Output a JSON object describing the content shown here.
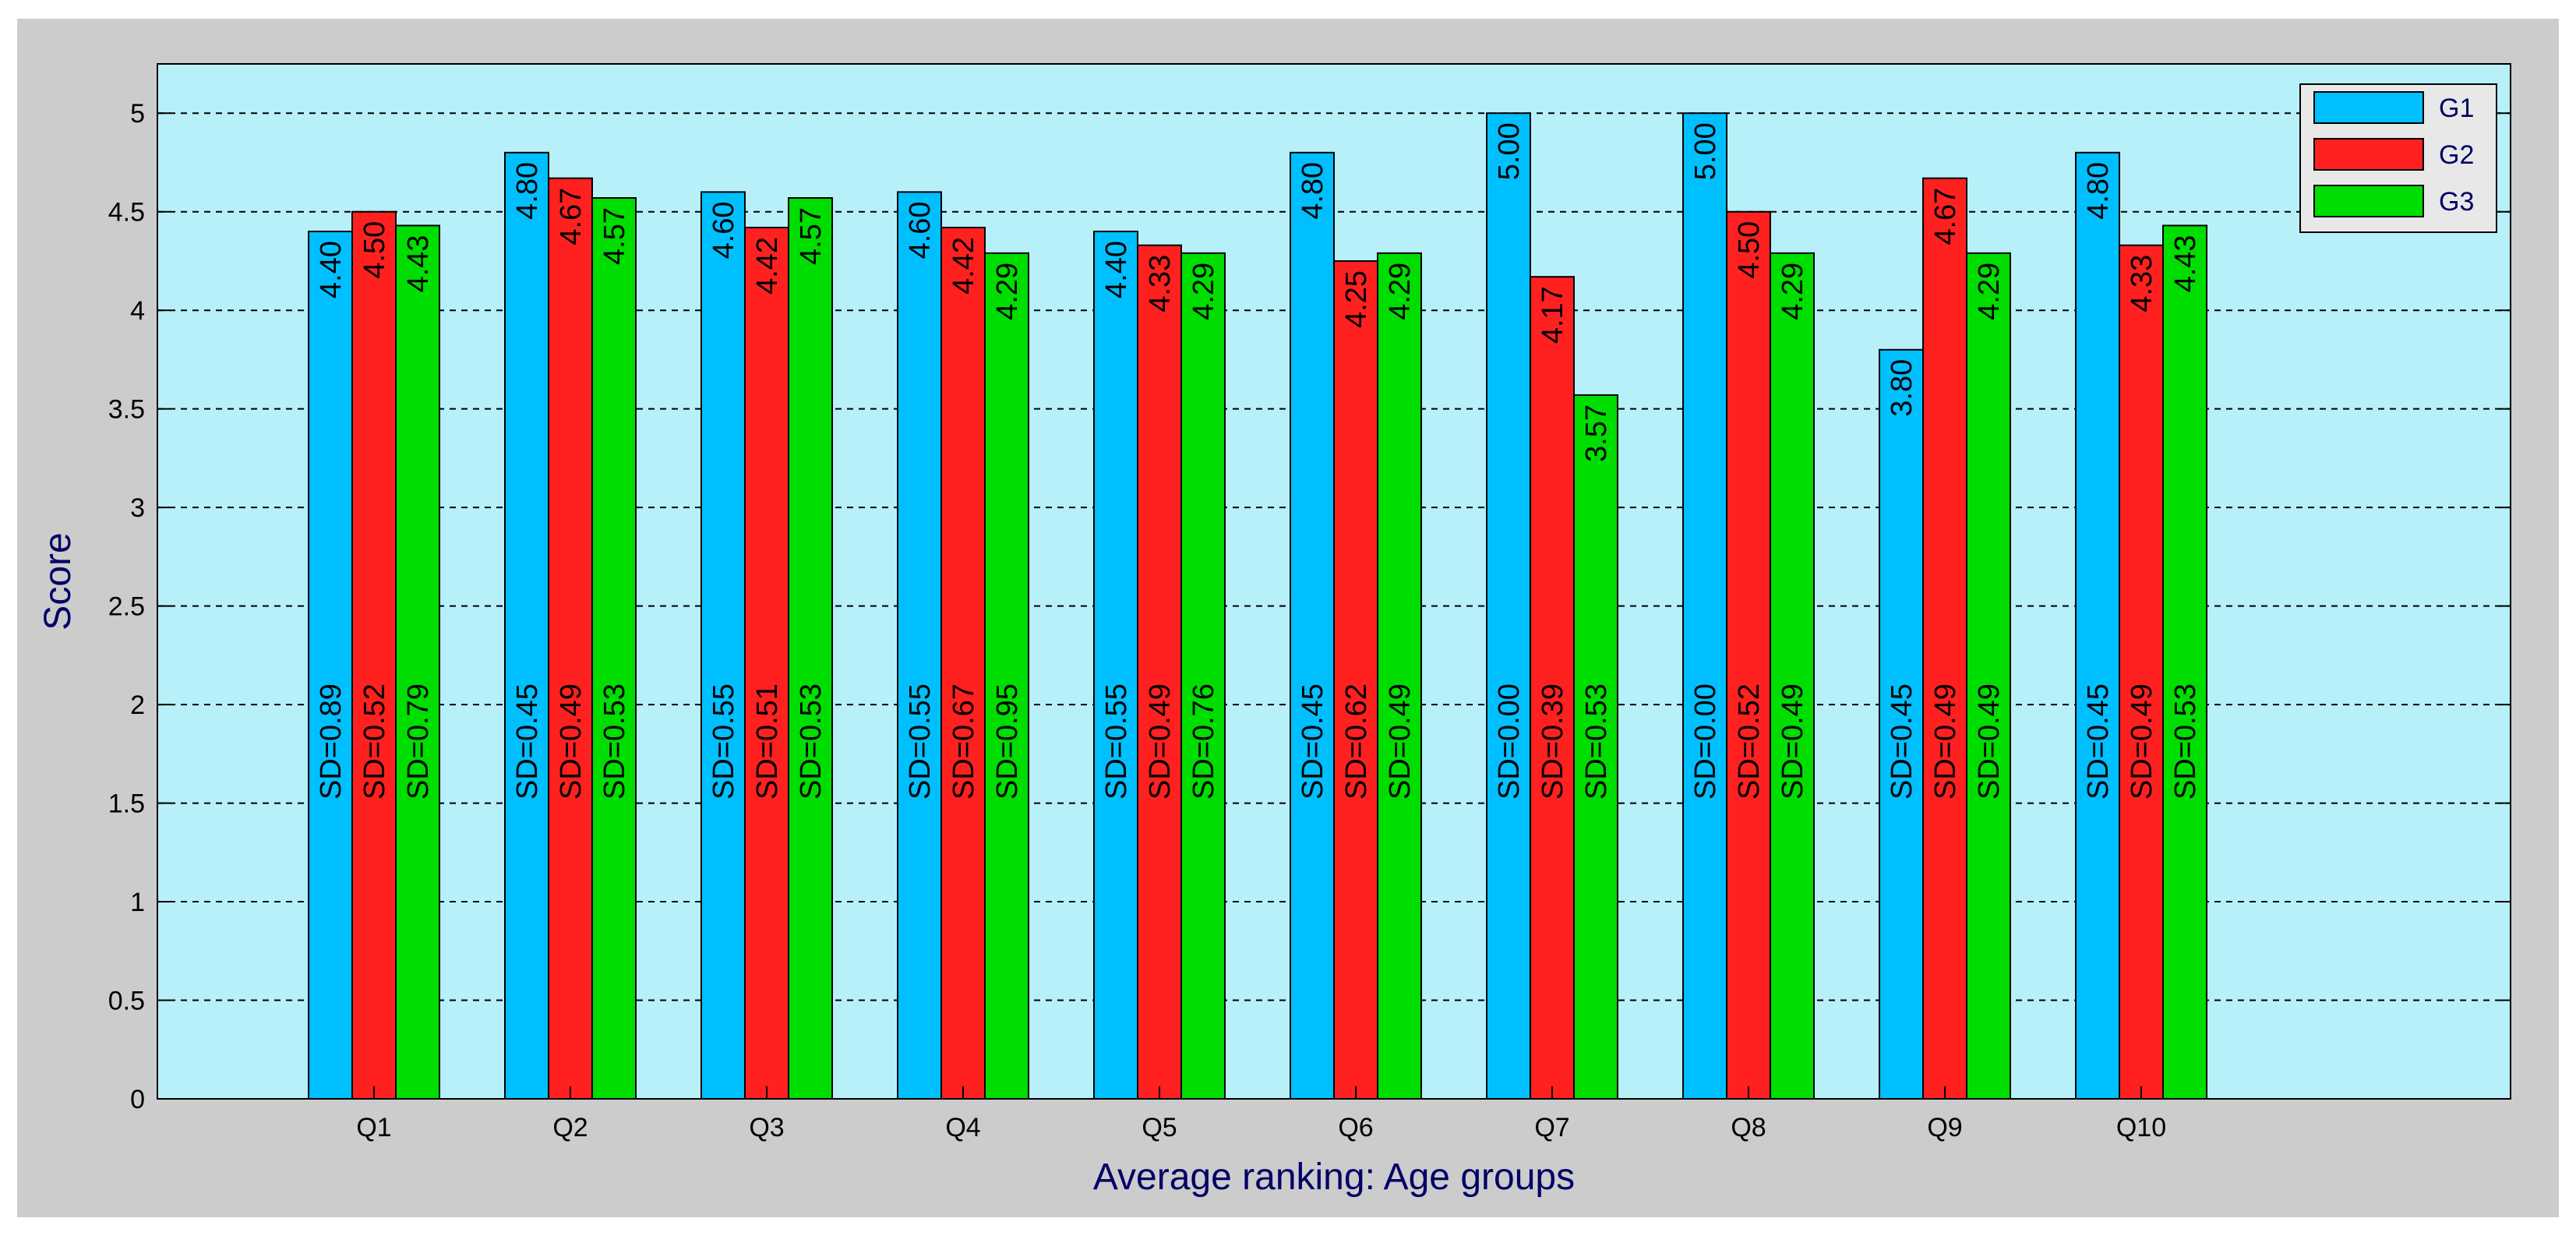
{
  "chart_data": {
    "type": "bar",
    "title": "",
    "xlabel": "Average ranking: Age groups",
    "ylabel": "Score",
    "ylim": [
      0,
      5.25
    ],
    "yticks": [
      "0",
      "0.5",
      "1",
      "1.5",
      "2",
      "2.5",
      "3",
      "3.5",
      "4",
      "4.5",
      "5"
    ],
    "grid": "horizontal dashed",
    "legend_position": "top-right",
    "categories": [
      "Q1",
      "Q2",
      "Q3",
      "Q4",
      "Q5",
      "Q6",
      "Q7",
      "Q8",
      "Q9",
      "Q10"
    ],
    "series": [
      {
        "name": "G1",
        "color": "#00bfff",
        "values": [
          4.4,
          4.8,
          4.6,
          4.6,
          4.4,
          4.8,
          5.0,
          5.0,
          3.8,
          4.8
        ],
        "value_labels": [
          "4.40",
          "4.80",
          "4.60",
          "4.60",
          "4.40",
          "4.80",
          "5.00",
          "5.00",
          "3.80",
          "4.80"
        ],
        "sd_labels": [
          "SD=0.89",
          "SD=0.45",
          "SD=0.55",
          "SD=0.55",
          "SD=0.55",
          "SD=0.45",
          "SD=0.00",
          "SD=0.00",
          "SD=0.45",
          "SD=0.45"
        ]
      },
      {
        "name": "G2",
        "color": "#ff2020",
        "values": [
          4.5,
          4.67,
          4.42,
          4.42,
          4.33,
          4.25,
          4.17,
          4.5,
          4.67,
          4.33
        ],
        "value_labels": [
          "4.50",
          "4.67",
          "4.42",
          "4.42",
          "4.33",
          "4.25",
          "4.17",
          "4.50",
          "4.67",
          "4.33"
        ],
        "sd_labels": [
          "SD=0.52",
          "SD=0.49",
          "SD=0.51",
          "SD=0.67",
          "SD=0.49",
          "SD=0.62",
          "SD=0.39",
          "SD=0.52",
          "SD=0.49",
          "SD=0.49"
        ]
      },
      {
        "name": "G3",
        "color": "#00dd00",
        "values": [
          4.43,
          4.57,
          4.57,
          4.29,
          4.29,
          4.29,
          3.57,
          4.29,
          4.29,
          4.43
        ],
        "value_labels": [
          "4.43",
          "4.57",
          "4.57",
          "4.29",
          "4.29",
          "4.29",
          "3.57",
          "4.29",
          "4.29",
          "4.43"
        ],
        "sd_labels": [
          "SD=0.79",
          "SD=0.53",
          "SD=0.53",
          "SD=0.95",
          "SD=0.76",
          "SD=0.49",
          "SD=0.53",
          "SD=0.49",
          "SD=0.49",
          "SD=0.53"
        ]
      }
    ],
    "colors": {
      "plot_background": "#b8f0fa",
      "figure_background": "#cccccc",
      "axis_label": "#000066"
    }
  }
}
